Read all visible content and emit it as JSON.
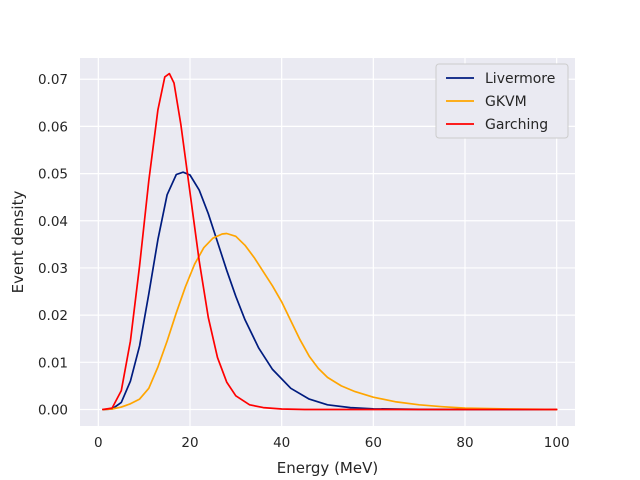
{
  "chart_data": {
    "type": "line",
    "title": "",
    "xlabel": "Energy (MeV)",
    "ylabel": "Event density",
    "xlim": [
      -4,
      104
    ],
    "ylim": [
      -0.0035,
      0.0745
    ],
    "xticks": [
      0,
      20,
      40,
      60,
      80,
      100
    ],
    "yticks": [
      0.0,
      0.01,
      0.02,
      0.03,
      0.04,
      0.05,
      0.06,
      0.07
    ],
    "xtick_labels": [
      "0",
      "20",
      "40",
      "60",
      "80",
      "100"
    ],
    "ytick_labels": [
      "0.00",
      "0.01",
      "0.02",
      "0.03",
      "0.04",
      "0.05",
      "0.06",
      "0.07"
    ],
    "grid": true,
    "background": "#eaeaf2",
    "legend_position": "top-right",
    "series": [
      {
        "name": "Livermore",
        "color": "#001c7f",
        "x": [
          1,
          3,
          5,
          7,
          9,
          11,
          13,
          15,
          17,
          18.5,
          20,
          22,
          24,
          26,
          28,
          30,
          32,
          35,
          38,
          42,
          46,
          50,
          55,
          60,
          70,
          80,
          90,
          100
        ],
        "y": [
          0.0,
          0.0001,
          0.0015,
          0.006,
          0.0135,
          0.0245,
          0.036,
          0.0455,
          0.0498,
          0.0503,
          0.0497,
          0.0465,
          0.0415,
          0.0355,
          0.0295,
          0.024,
          0.019,
          0.013,
          0.0085,
          0.0045,
          0.0022,
          0.001,
          0.0004,
          0.00015,
          2e-05,
          0.0,
          0.0,
          0.0
        ]
      },
      {
        "name": "GKVM",
        "color": "#ffa500",
        "x": [
          1,
          3,
          5,
          7,
          9,
          11,
          13,
          15,
          17,
          19,
          21,
          23,
          25,
          27,
          28,
          30,
          32,
          34,
          36,
          38,
          40,
          42,
          44,
          46,
          48,
          50,
          53,
          56,
          60,
          65,
          70,
          75,
          80,
          90,
          100
        ],
        "y": [
          0.0,
          0.0001,
          0.0005,
          0.0012,
          0.0022,
          0.0045,
          0.009,
          0.0145,
          0.0205,
          0.026,
          0.0308,
          0.0343,
          0.0363,
          0.0372,
          0.0373,
          0.0367,
          0.0348,
          0.0322,
          0.0292,
          0.0262,
          0.0228,
          0.0188,
          0.0148,
          0.0113,
          0.0087,
          0.0068,
          0.005,
          0.0038,
          0.0026,
          0.0016,
          0.001,
          0.0006,
          0.0003,
          0.0001,
          0.0
        ]
      },
      {
        "name": "Garching",
        "color": "#ff0000",
        "x": [
          1,
          3,
          5,
          7,
          9,
          11,
          13,
          14.5,
          15.5,
          16.5,
          18,
          20,
          22,
          24,
          26,
          28,
          30,
          33,
          36,
          40,
          45,
          50,
          60,
          80,
          100
        ],
        "y": [
          0.0,
          0.0003,
          0.004,
          0.0145,
          0.0305,
          0.0485,
          0.0635,
          0.0705,
          0.0712,
          0.0692,
          0.0605,
          0.046,
          0.0315,
          0.0195,
          0.011,
          0.0058,
          0.0029,
          0.001,
          0.0004,
          0.0001,
          0.0,
          0.0,
          0.0,
          0.0,
          0.0
        ]
      }
    ]
  }
}
